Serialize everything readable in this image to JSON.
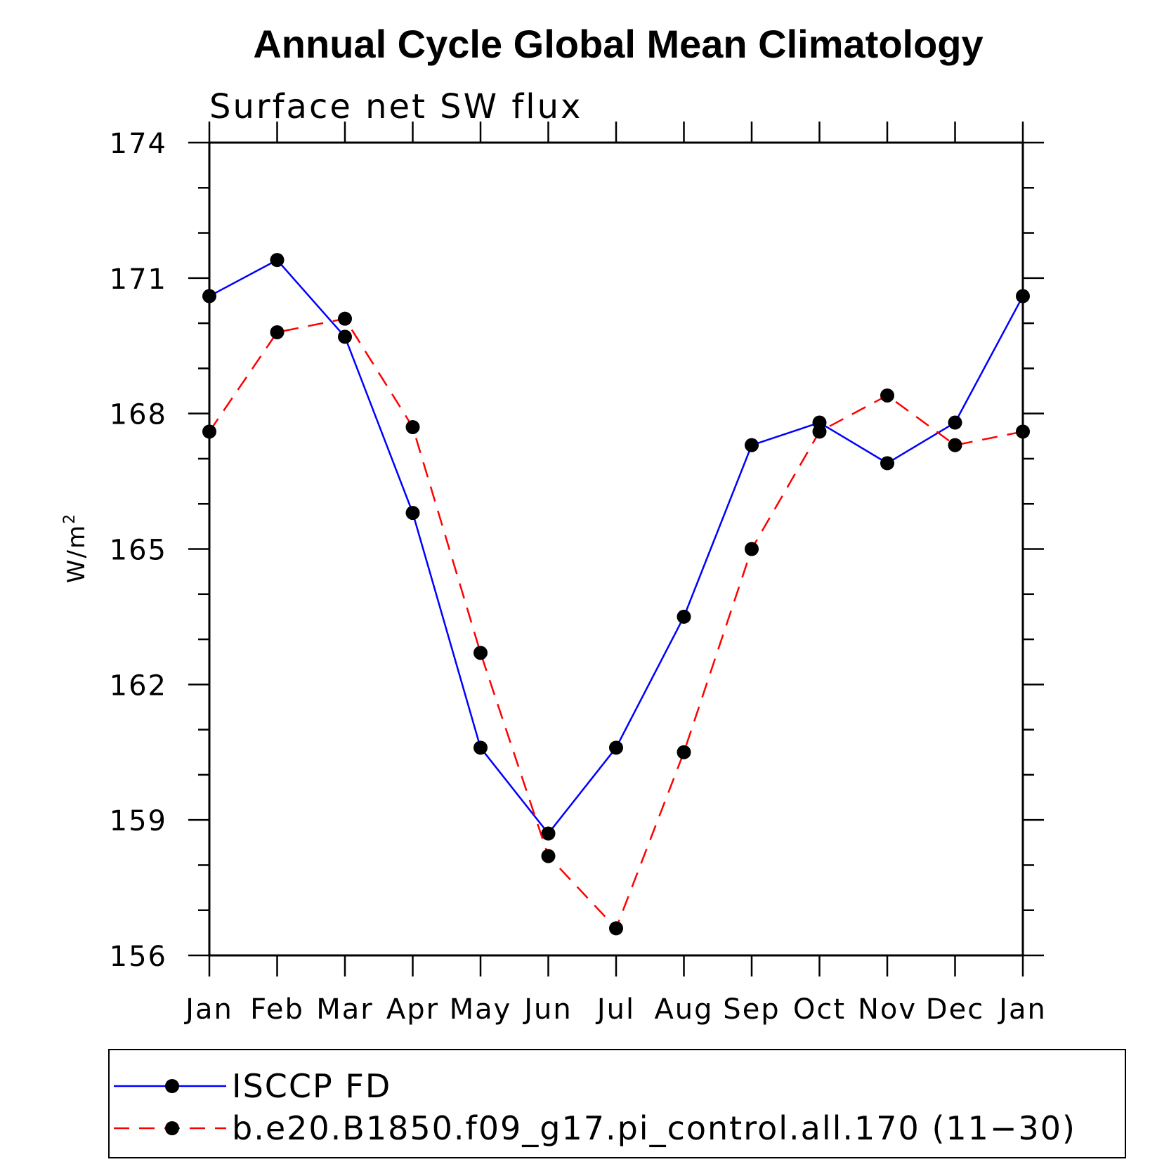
{
  "chart_data": {
    "type": "line",
    "title": "Annual Cycle Global Mean Climatology",
    "subtitle": "Surface net SW flux",
    "ylabel": "W/m",
    "ylabel_superscript": "2",
    "xlabel": "",
    "categories": [
      "Jan",
      "Feb",
      "Mar",
      "Apr",
      "May",
      "Jun",
      "Jul",
      "Aug",
      "Sep",
      "Oct",
      "Nov",
      "Dec",
      "Jan"
    ],
    "ylim": [
      156,
      174
    ],
    "yticks": [
      156,
      159,
      162,
      165,
      168,
      171,
      174
    ],
    "y_minor_step": 1,
    "grid": false,
    "legend_position": "bottom",
    "series": [
      {
        "name": "ISCCP FD",
        "color": "#0000ff",
        "dash": "solid",
        "marker": "filled-circle",
        "values": [
          170.6,
          171.4,
          169.7,
          165.8,
          160.6,
          158.7,
          160.6,
          163.5,
          167.3,
          167.8,
          166.9,
          167.8,
          170.6
        ]
      },
      {
        "name": "b.e20.B1850.f09_g17.pi_control.all.170 (11−30)",
        "color": "#ff0000",
        "dash": "dashed",
        "marker": "filled-circle",
        "values": [
          167.6,
          169.8,
          170.1,
          167.7,
          162.7,
          158.2,
          156.6,
          160.5,
          165.0,
          167.6,
          168.4,
          167.3,
          167.6
        ]
      }
    ]
  }
}
